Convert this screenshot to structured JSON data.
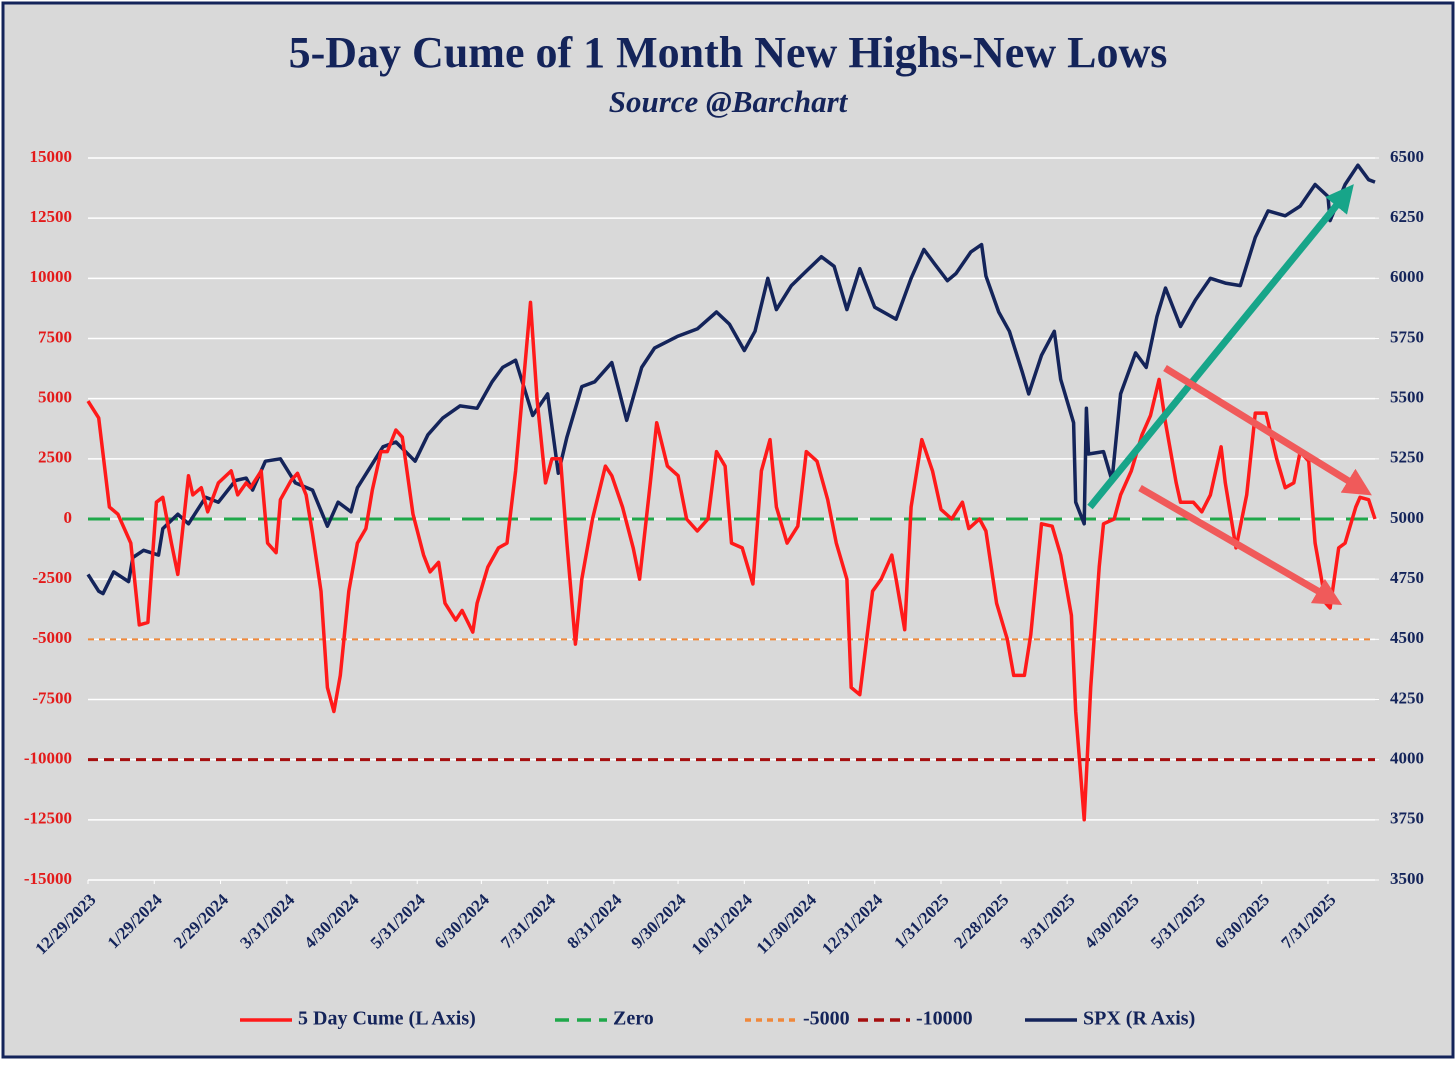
{
  "chart_data": {
    "type": "line",
    "title": "5-Day Cume of 1 Month New Highs-New Lows",
    "subtitle": "Source @Barchart",
    "xlim": [
      "12/29/2023",
      "8/22/2025"
    ],
    "xticks": [
      "12/29/2023",
      "1/29/2024",
      "2/29/2024",
      "3/31/2024",
      "4/30/2024",
      "5/31/2024",
      "6/30/2024",
      "7/31/2024",
      "8/31/2024",
      "9/30/2024",
      "10/31/2024",
      "11/30/2024",
      "12/31/2024",
      "1/31/2025",
      "2/28/2025",
      "3/31/2025",
      "4/30/2025",
      "5/31/2025",
      "6/30/2025",
      "7/31/2025"
    ],
    "ylim": [
      -15000,
      15000
    ],
    "yticks": [
      -15000,
      -12500,
      -10000,
      -7500,
      -5000,
      -2500,
      0,
      2500,
      5000,
      7500,
      10000,
      12500,
      15000
    ],
    "y2lim": [
      3500,
      6500
    ],
    "y2ticks": [
      3500,
      3750,
      4000,
      4250,
      4500,
      4750,
      5000,
      5250,
      5500,
      5750,
      6000,
      6250,
      6500
    ],
    "grid": true,
    "reference_lines": [
      {
        "name": "Zero",
        "value": 0,
        "color": "#1fa84a",
        "dash": "long"
      },
      {
        "name": "-5000",
        "value": -5000,
        "color": "#f0883a",
        "dash": "short"
      },
      {
        "name": "-10000",
        "value": -10000,
        "color": "#a50f0f",
        "dash": "medium"
      }
    ],
    "series": [
      {
        "name": "5 Day Cume (L Axis)",
        "color": "#ff1a1a",
        "axis": "y",
        "x": [
          "12/29/2023",
          "1/3/2024",
          "1/8/2024",
          "1/12/2024",
          "1/18/2024",
          "1/22/2024",
          "1/26/2024",
          "1/30/2024",
          "2/2/2024",
          "2/6/2024",
          "2/9/2024",
          "2/14/2024",
          "2/16/2024",
          "2/20/2024",
          "2/23/2024",
          "2/28/2024",
          "3/5/2024",
          "3/8/2024",
          "3/12/2024",
          "3/14/2024",
          "3/19/2024",
          "3/22/2024",
          "3/26/2024",
          "3/28/2024",
          "4/2/2024",
          "4/5/2024",
          "4/9/2024",
          "4/12/2024",
          "4/16/2024",
          "4/19/2024",
          "4/22/2024",
          "4/25/2024",
          "4/29/2024",
          "5/3/2024",
          "5/7/2024",
          "5/10/2024",
          "5/14/2024",
          "5/17/2024",
          "5/21/2024",
          "5/24/2024",
          "5/29/2024",
          "6/3/2024",
          "6/6/2024",
          "6/10/2024",
          "6/13/2024",
          "6/18/2024",
          "6/21/2024",
          "6/26/2024",
          "6/28/2024",
          "7/3/2024",
          "7/8/2024",
          "7/12/2024",
          "7/16/2024",
          "7/19/2024",
          "7/23/2024",
          "7/26/2024",
          "7/30/2024",
          "8/2/2024",
          "8/6/2024",
          "8/9/2024",
          "8/13/2024",
          "8/16/2024",
          "8/21/2024",
          "8/27/2024",
          "8/30/2024",
          "9/4/2024",
          "9/9/2024",
          "9/12/2024",
          "9/17/2024",
          "9/20/2024",
          "9/25/2024",
          "9/30/2024",
          "10/4/2024",
          "10/9/2024",
          "10/14/2024",
          "10/18/2024",
          "10/22/2024",
          "10/25/2024",
          "10/30/2024",
          "11/4/2024",
          "11/8/2024",
          "11/12/2024",
          "11/15/2024",
          "11/20/2024",
          "11/25/2024",
          "11/29/2024",
          "12/4/2024",
          "12/9/2024",
          "12/13/2024",
          "12/18/2024",
          "12/20/2024",
          "12/24/2024",
          "12/30/2024",
          "1/3/2025",
          "1/8/2025",
          "1/10/2025",
          "1/14/2025",
          "1/17/2025",
          "1/22/2025",
          "1/27/2025",
          "1/31/2025",
          "2/5/2025",
          "2/10/2025",
          "2/13/2025",
          "2/18/2025",
          "2/21/2025",
          "2/26/2025",
          "3/3/2025",
          "3/6/2025",
          "3/11/2025",
          "3/14/2025",
          "3/19/2025",
          "3/24/2025",
          "3/28/2025",
          "4/2/2025",
          "4/4/2025",
          "4/8/2025",
          "4/11/2025",
          "4/15/2025",
          "4/17/2025",
          "4/22/2025",
          "4/25/2025",
          "4/30/2025",
          "5/5/2025",
          "5/9/2025",
          "5/13/2025",
          "5/16/2025",
          "5/21/2025",
          "5/23/2025",
          "5/29/2025",
          "6/2/2025",
          "6/6/2025",
          "6/11/2025",
          "6/13/2025",
          "6/18/2025",
          "6/23/2025",
          "6/27/2025",
          "7/2/2025",
          "7/7/2025",
          "7/11/2025",
          "7/15/2025",
          "7/18/2025",
          "7/22/2025",
          "7/25/2025",
          "7/30/2025",
          "8/1/2025",
          "8/5/2025",
          "8/8/2025",
          "8/13/2025",
          "8/15/2025",
          "8/19/2025",
          "8/22/2025"
        ],
        "values": [
          4900,
          4200,
          500,
          200,
          -1000,
          -4400,
          -4300,
          700,
          900,
          -1000,
          -2300,
          1800,
          1000,
          1300,
          300,
          1500,
          2000,
          1000,
          1500,
          1300,
          2000,
          -1000,
          -1400,
          800,
          1600,
          1900,
          1000,
          -600,
          -3000,
          -7000,
          -8000,
          -6500,
          -3000,
          -1000,
          -400,
          1200,
          2800,
          2800,
          3700,
          3400,
          200,
          -1500,
          -2200,
          -1800,
          -3500,
          -4200,
          -3800,
          -4700,
          -3500,
          -2000,
          -1200,
          -1000,
          2000,
          5000,
          9000,
          5000,
          1500,
          2500,
          2500,
          -1000,
          -5200,
          -2500,
          0,
          2200,
          1800,
          500,
          -1200,
          -2500,
          1500,
          4000,
          2200,
          1800,
          0,
          -500,
          0,
          2800,
          2200,
          -1000,
          -1200,
          -2700,
          2000,
          3300,
          500,
          -1000,
          -300,
          2800,
          2400,
          800,
          -1000,
          -2500,
          -7000,
          -7300,
          -3000,
          -2500,
          -1500,
          -2500,
          -4600,
          500,
          3300,
          2000,
          400,
          0,
          700,
          -400,
          0,
          -500,
          -3500,
          -5000,
          -6500,
          -6500,
          -4800,
          -200,
          -300,
          -1500,
          -4000,
          -8000,
          -12500,
          -7000,
          -2000,
          -200,
          0,
          1000,
          2000,
          3500,
          4300,
          5800,
          4000,
          1500,
          700,
          700,
          300,
          1000,
          3000,
          1500,
          -1200,
          1000,
          4400,
          4400,
          2500,
          1300,
          1500,
          2800,
          2400,
          -1000,
          -3500,
          -3700,
          -1200,
          -1000,
          500,
          900,
          800,
          0
        ]
      },
      {
        "name": "SPX (R Axis)",
        "color": "#14245a",
        "axis": "y2",
        "x": [
          "12/29/2023",
          "1/3/2024",
          "1/5/2024",
          "1/10/2024",
          "1/17/2024",
          "1/19/2024",
          "1/24/2024",
          "1/31/2024",
          "2/2/2024",
          "2/9/2024",
          "2/14/2024",
          "2/22/2024",
          "2/28/2024",
          "3/7/2024",
          "3/12/2024",
          "3/15/2024",
          "3/21/2024",
          "3/28/2024",
          "4/4/2024",
          "4/12/2024",
          "4/19/2024",
          "4/24/2024",
          "4/30/2024",
          "5/3/2024",
          "5/15/2024",
          "5/21/2024",
          "5/30/2024",
          "6/5/2024",
          "6/12/2024",
          "6/20/2024",
          "6/28/2024",
          "7/5/2024",
          "7/10/2024",
          "7/16/2024",
          "7/24/2024",
          "7/31/2024",
          "8/5/2024",
          "8/9/2024",
          "8/16/2024",
          "8/22/2024",
          "8/30/2024",
          "9/6/2024",
          "9/13/2024",
          "9/19/2024",
          "9/30/2024",
          "10/9/2024",
          "10/18/2024",
          "10/24/2024",
          "10/31/2024",
          "11/5/2024",
          "11/11/2024",
          "11/15/2024",
          "11/22/2024",
          "11/29/2024",
          "12/6/2024",
          "12/12/2024",
          "12/18/2024",
          "12/24/2024",
          "12/31/2024",
          "1/10/2025",
          "1/17/2025",
          "1/23/2025",
          "1/28/2025",
          "2/3/2025",
          "2/7/2025",
          "2/14/2025",
          "2/19/2025",
          "2/21/2025",
          "2/27/2025",
          "3/4/2025",
          "3/10/2025",
          "3/13/2025",
          "3/19/2025",
          "3/25/2025",
          "3/28/2025",
          "4/3/2025",
          "4/4/2025",
          "4/8/2025",
          "4/9/2025",
          "4/10/2025",
          "4/17/2025",
          "4/21/2025",
          "4/25/2025",
          "5/2/2025",
          "5/7/2025",
          "5/12/2025",
          "5/16/2025",
          "5/23/2025",
          "5/30/2025",
          "6/6/2025",
          "6/13/2025",
          "6/20/2025",
          "6/27/2025",
          "7/3/2025",
          "7/11/2025",
          "7/18/2025",
          "7/25/2025",
          "7/31/2025",
          "8/1/2025",
          "8/8/2025",
          "8/14/2025",
          "8/19/2025",
          "8/22/2025"
        ],
        "values": [
          4770,
          4700,
          4690,
          4780,
          4740,
          4840,
          4870,
          4850,
          4960,
          5020,
          4980,
          5090,
          5070,
          5160,
          5170,
          5120,
          5240,
          5250,
          5150,
          5120,
          4970,
          5070,
          5030,
          5130,
          5300,
          5320,
          5240,
          5350,
          5420,
          5470,
          5460,
          5570,
          5630,
          5660,
          5430,
          5520,
          5190,
          5340,
          5550,
          5570,
          5650,
          5410,
          5630,
          5710,
          5760,
          5790,
          5860,
          5810,
          5700,
          5780,
          6000,
          5870,
          5970,
          6030,
          6090,
          6050,
          5870,
          6040,
          5880,
          5830,
          6000,
          6120,
          6060,
          5990,
          6020,
          6110,
          6140,
          6010,
          5860,
          5780,
          5610,
          5520,
          5680,
          5780,
          5580,
          5400,
          5070,
          4980,
          5460,
          5270,
          5280,
          5160,
          5520,
          5690,
          5630,
          5840,
          5960,
          5800,
          5910,
          6000,
          5980,
          5970,
          6170,
          6280,
          6260,
          6300,
          6390,
          6340,
          6240,
          6390,
          6470,
          6410,
          6400
        ]
      }
    ]
  }
}
